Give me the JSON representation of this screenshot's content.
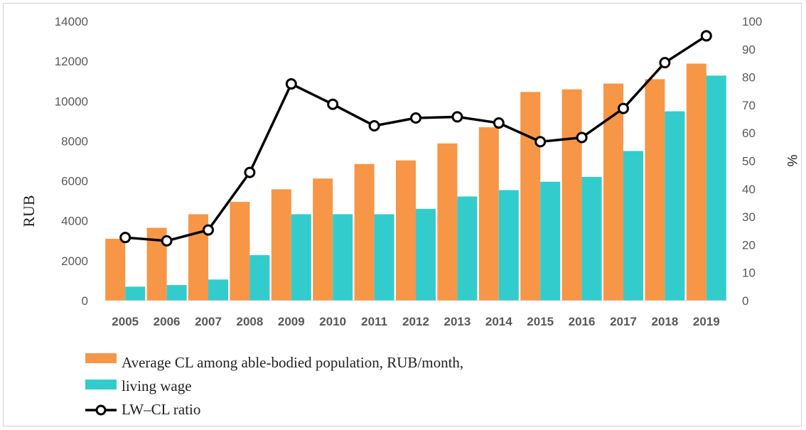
{
  "chart_data": {
    "type": "bar",
    "categories": [
      "2005",
      "2006",
      "2007",
      "2008",
      "2009",
      "2010",
      "2011",
      "2012",
      "2013",
      "2014",
      "2015",
      "2016",
      "2017",
      "2018",
      "2019"
    ],
    "series": [
      {
        "name": "Average CL among able-bodied population, RUB/month,",
        "type": "bar",
        "axis": "left",
        "color": "#F79646",
        "values": [
          3100,
          3650,
          4330,
          4950,
          5580,
          6120,
          6850,
          7030,
          7880,
          8690,
          10460,
          10590,
          10880,
          11100,
          11880
        ]
      },
      {
        "name": "living wage",
        "type": "bar",
        "axis": "left",
        "color": "#33CCCC",
        "values": [
          700,
          780,
          1060,
          2280,
          4330,
          4330,
          4330,
          4600,
          5220,
          5540,
          5960,
          6200,
          7500,
          9490,
          11280
        ]
      },
      {
        "name": "LW–CL ratio",
        "type": "line",
        "axis": "right",
        "color": "#000000",
        "values": [
          22.6,
          21.4,
          25.3,
          45.9,
          77.6,
          70.3,
          62.6,
          65.4,
          65.8,
          63.6,
          56.9,
          58.4,
          68.8,
          85.2,
          94.8
        ]
      }
    ],
    "ylabel": "RUB",
    "y2label": "%",
    "ylim": [
      0,
      14000
    ],
    "y2lim": [
      0,
      100
    ],
    "yticks": [
      "0",
      "2000",
      "4000",
      "6000",
      "8000",
      "10000",
      "12000",
      "14000"
    ],
    "y2ticks": [
      "0",
      "10",
      "20",
      "30",
      "40",
      "50",
      "60",
      "70",
      "80",
      "90",
      "100"
    ],
    "grid": false,
    "legend_position": "bottom-left"
  }
}
